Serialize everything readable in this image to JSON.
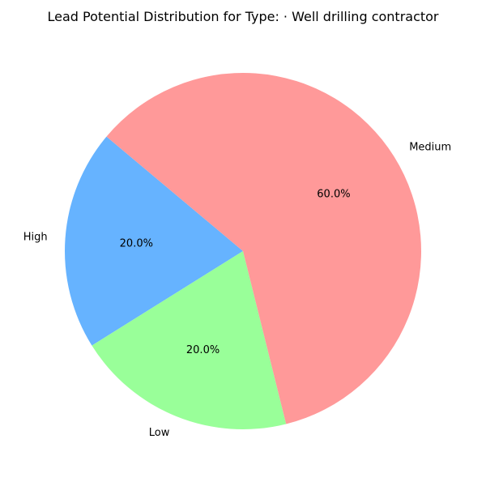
{
  "chart_data": {
    "type": "pie",
    "title": "Lead Potential Distribution for Type: · Well drilling contractor",
    "slices": [
      {
        "label": "High",
        "value": 20.0,
        "pct_label": "20.0%",
        "color": "#66b3ff"
      },
      {
        "label": "Low",
        "value": 20.0,
        "pct_label": "20.0%",
        "color": "#99ff99"
      },
      {
        "label": "Medium",
        "value": 60.0,
        "pct_label": "60.0%",
        "color": "#ff9999"
      }
    ]
  }
}
